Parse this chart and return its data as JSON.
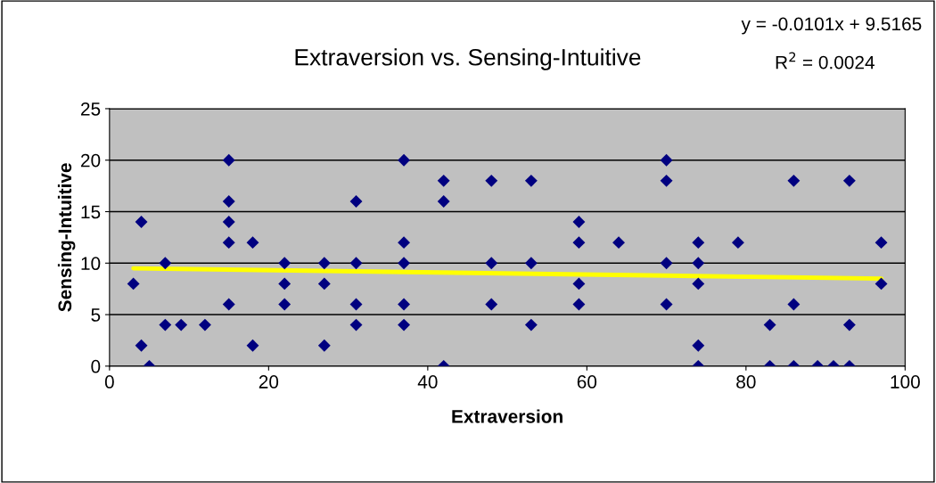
{
  "chart_data": {
    "type": "scatter",
    "title": "Extraversion vs. Sensing-Intuitive",
    "xlabel": "Extraversion",
    "ylabel": "Sensing-Intuitive",
    "annotations": [
      "y = -0.0101x + 9.5165",
      "R$^{2}$ = 0.0024"
    ],
    "series": [
      {
        "color": "#000080",
        "marker": "diamond",
        "x": [
          3,
          4,
          4,
          5,
          7,
          7,
          9,
          12,
          15,
          15,
          15,
          15,
          15,
          18,
          18,
          22,
          22,
          22,
          27,
          27,
          27,
          31,
          31,
          31,
          31,
          37,
          37,
          37,
          37,
          37,
          42,
          42,
          42,
          48,
          48,
          48,
          53,
          53,
          53,
          59,
          59,
          59,
          59,
          64,
          70,
          70,
          70,
          70,
          74,
          74,
          74,
          74,
          74,
          79,
          83,
          83,
          86,
          86,
          86,
          89,
          91,
          93,
          93,
          93,
          97,
          97
        ],
        "values": [
          8,
          14,
          2,
          0,
          10,
          4,
          4,
          4,
          20,
          16,
          14,
          12,
          6,
          12,
          2,
          10,
          8,
          6,
          10,
          8,
          2,
          16,
          10,
          6,
          4,
          20,
          12,
          10,
          6,
          4,
          18,
          16,
          0,
          18,
          10,
          6,
          18,
          10,
          4,
          14,
          12,
          8,
          6,
          12,
          20,
          18,
          10,
          6,
          12,
          10,
          8,
          2,
          0,
          12,
          4,
          0,
          18,
          6,
          0,
          0,
          0,
          18,
          4,
          0,
          12,
          8
        ]
      },
      {
        "type": "line",
        "color": "#ffff00",
        "marker": "none",
        "line_style": "solid",
        "x": [
          3,
          97
        ],
        "values": [
          9.5,
          8.5
        ]
      }
    ],
    "xlim": [
      0,
      100
    ],
    "xticks": [
      0,
      20,
      40,
      60,
      80,
      100
    ],
    "ylim": [
      0,
      25
    ],
    "yticks": [
      0,
      5,
      10,
      15,
      20,
      25
    ],
    "grid": "y",
    "legend": false
  }
}
